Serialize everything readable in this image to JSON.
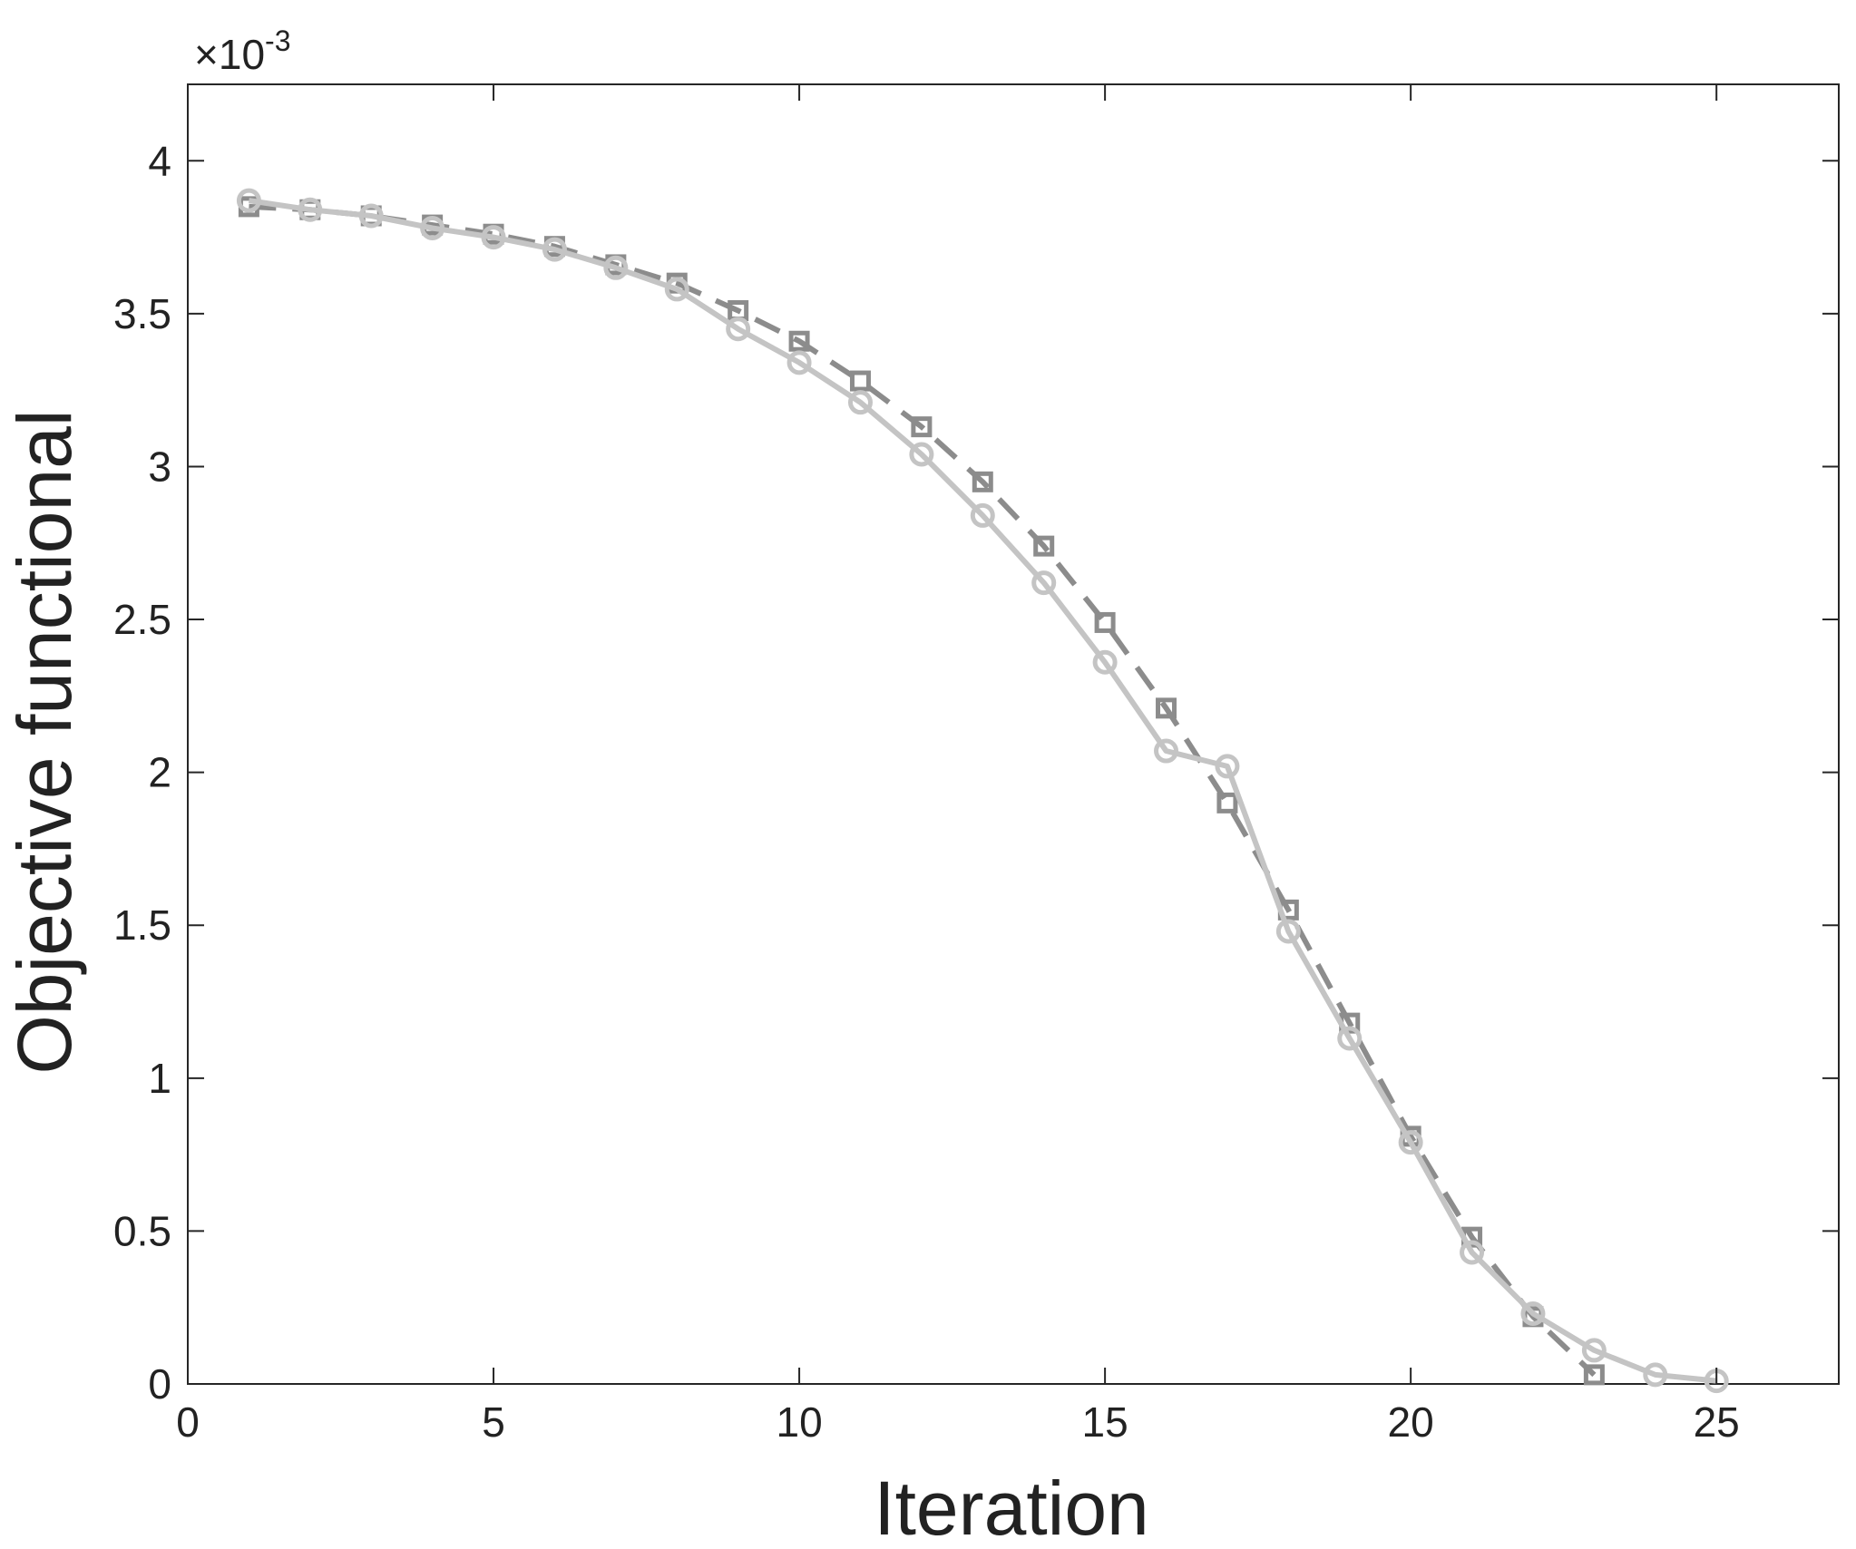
{
  "chart_data": {
    "type": "line",
    "title": "",
    "xlabel": "Iteration",
    "ylabel": "Objective functional",
    "y_exponent_label": {
      "base": "×10",
      "exponent": "-3"
    },
    "xlim": [
      0,
      27
    ],
    "ylim": [
      0,
      4.25
    ],
    "xticks": [
      0,
      5,
      10,
      15,
      20,
      25
    ],
    "xtick_labels": [
      "0",
      "5",
      "10",
      "15",
      "20",
      "25"
    ],
    "yticks": [
      0,
      0.5,
      1,
      1.5,
      2,
      2.5,
      3,
      3.5,
      4
    ],
    "ytick_labels": [
      "0",
      "0.5",
      "1",
      "1.5",
      "2",
      "2.5",
      "3",
      "3.5",
      "4"
    ],
    "grid": false,
    "legend": "none",
    "series": [
      {
        "marker": "square",
        "line_style": "dashed",
        "color": "#8c8c8c",
        "x": [
          1,
          2,
          3,
          4,
          5,
          6,
          7,
          8,
          9,
          10,
          11,
          12,
          13,
          14,
          15,
          16,
          17,
          18,
          19,
          20,
          21,
          22,
          23
        ],
        "values": [
          3.85,
          3.84,
          3.82,
          3.79,
          3.76,
          3.72,
          3.66,
          3.6,
          3.51,
          3.41,
          3.28,
          3.13,
          2.95,
          2.74,
          2.49,
          2.21,
          1.9,
          1.55,
          1.18,
          0.81,
          0.48,
          0.22,
          0.03
        ]
      },
      {
        "marker": "circle",
        "line_style": "solid",
        "color": "#c4c4c4",
        "x": [
          1,
          2,
          3,
          4,
          5,
          6,
          7,
          8,
          9,
          10,
          11,
          12,
          13,
          14,
          15,
          16,
          17,
          18,
          19,
          20,
          21,
          22,
          23,
          24,
          25
        ],
        "values": [
          3.87,
          3.84,
          3.82,
          3.78,
          3.75,
          3.71,
          3.65,
          3.58,
          3.45,
          3.34,
          3.21,
          3.04,
          2.84,
          2.62,
          2.36,
          2.07,
          2.02,
          1.48,
          1.13,
          0.79,
          0.43,
          0.23,
          0.11,
          0.03,
          0.01
        ]
      }
    ]
  }
}
